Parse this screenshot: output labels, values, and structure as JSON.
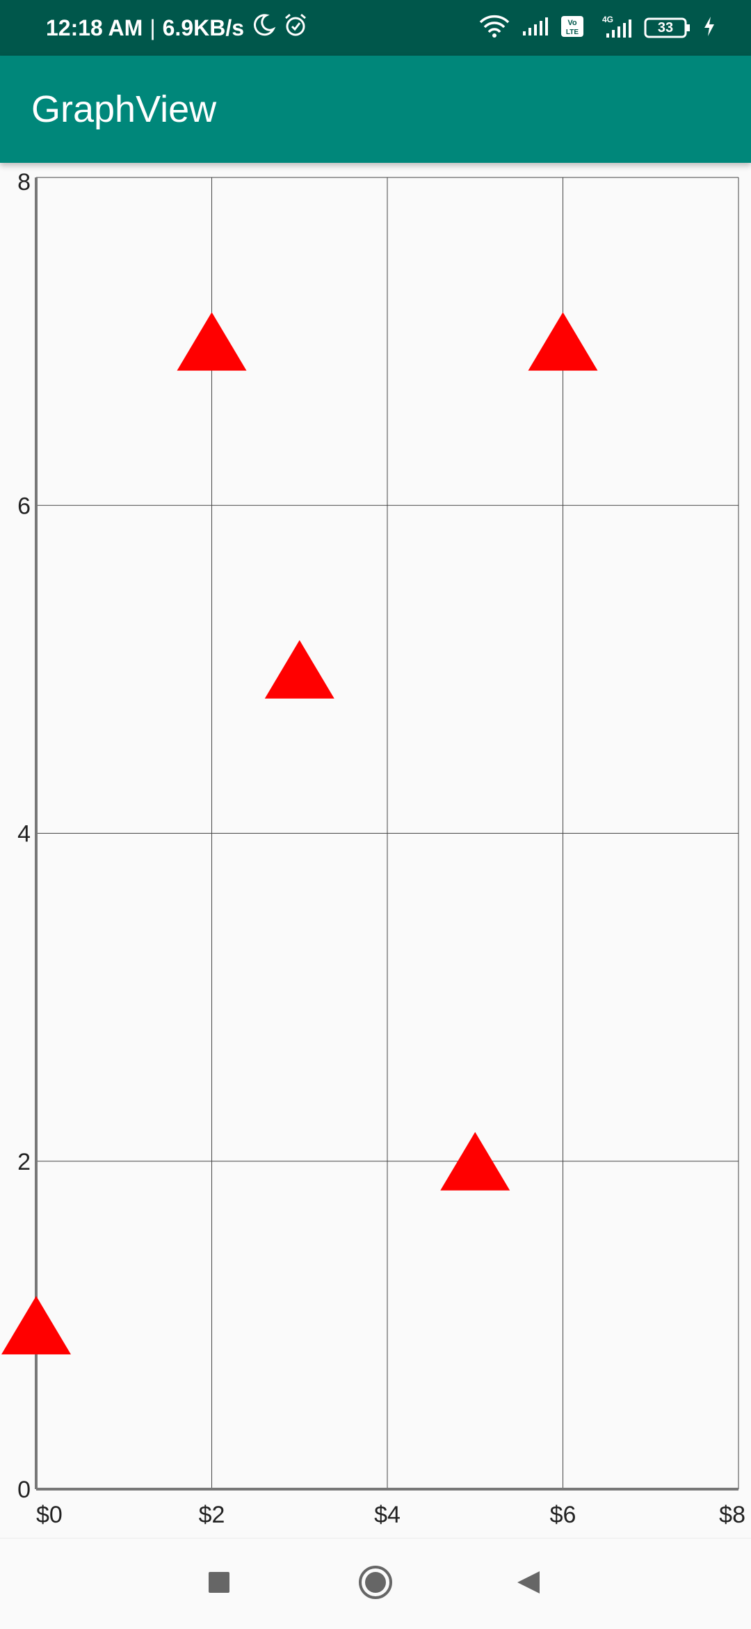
{
  "status_bar": {
    "time": "12:18 AM",
    "separator": "|",
    "network_speed": "6.9KB/s",
    "icons": [
      "moon-icon",
      "alarm-icon",
      "wifi-icon",
      "signal-icon",
      "volte-icon",
      "signal-4g-icon",
      "battery-icon",
      "charging-icon"
    ],
    "volte_label": "Vo LTE",
    "network_type": "4G",
    "battery_level": "33"
  },
  "app_bar": {
    "title": "GraphView"
  },
  "colors": {
    "status_bar": "#00574b",
    "app_bar": "#00877a",
    "point": "#ff0000",
    "grid": "#444444",
    "axis": "#777777"
  },
  "chart_data": {
    "type": "scatter",
    "marker": "triangle",
    "xlim": [
      0,
      8
    ],
    "ylim": [
      0,
      8
    ],
    "x_ticks": [
      0,
      2,
      4,
      6,
      8
    ],
    "x_tick_labels": [
      "$0",
      "$2",
      "$4",
      "$6",
      "$8"
    ],
    "y_ticks": [
      0,
      2,
      4,
      6,
      8
    ],
    "y_tick_labels": [
      "0",
      "2",
      "4",
      "6",
      "8"
    ],
    "grid": true,
    "series": [
      {
        "points": [
          {
            "x": 0,
            "y": 1
          },
          {
            "x": 2,
            "y": 7
          },
          {
            "x": 3,
            "y": 5
          },
          {
            "x": 5,
            "y": 2
          },
          {
            "x": 6,
            "y": 7
          }
        ]
      }
    ]
  },
  "nav_bar": {
    "icons": [
      "recents-square-icon",
      "home-circle-icon",
      "back-triangle-icon"
    ]
  }
}
